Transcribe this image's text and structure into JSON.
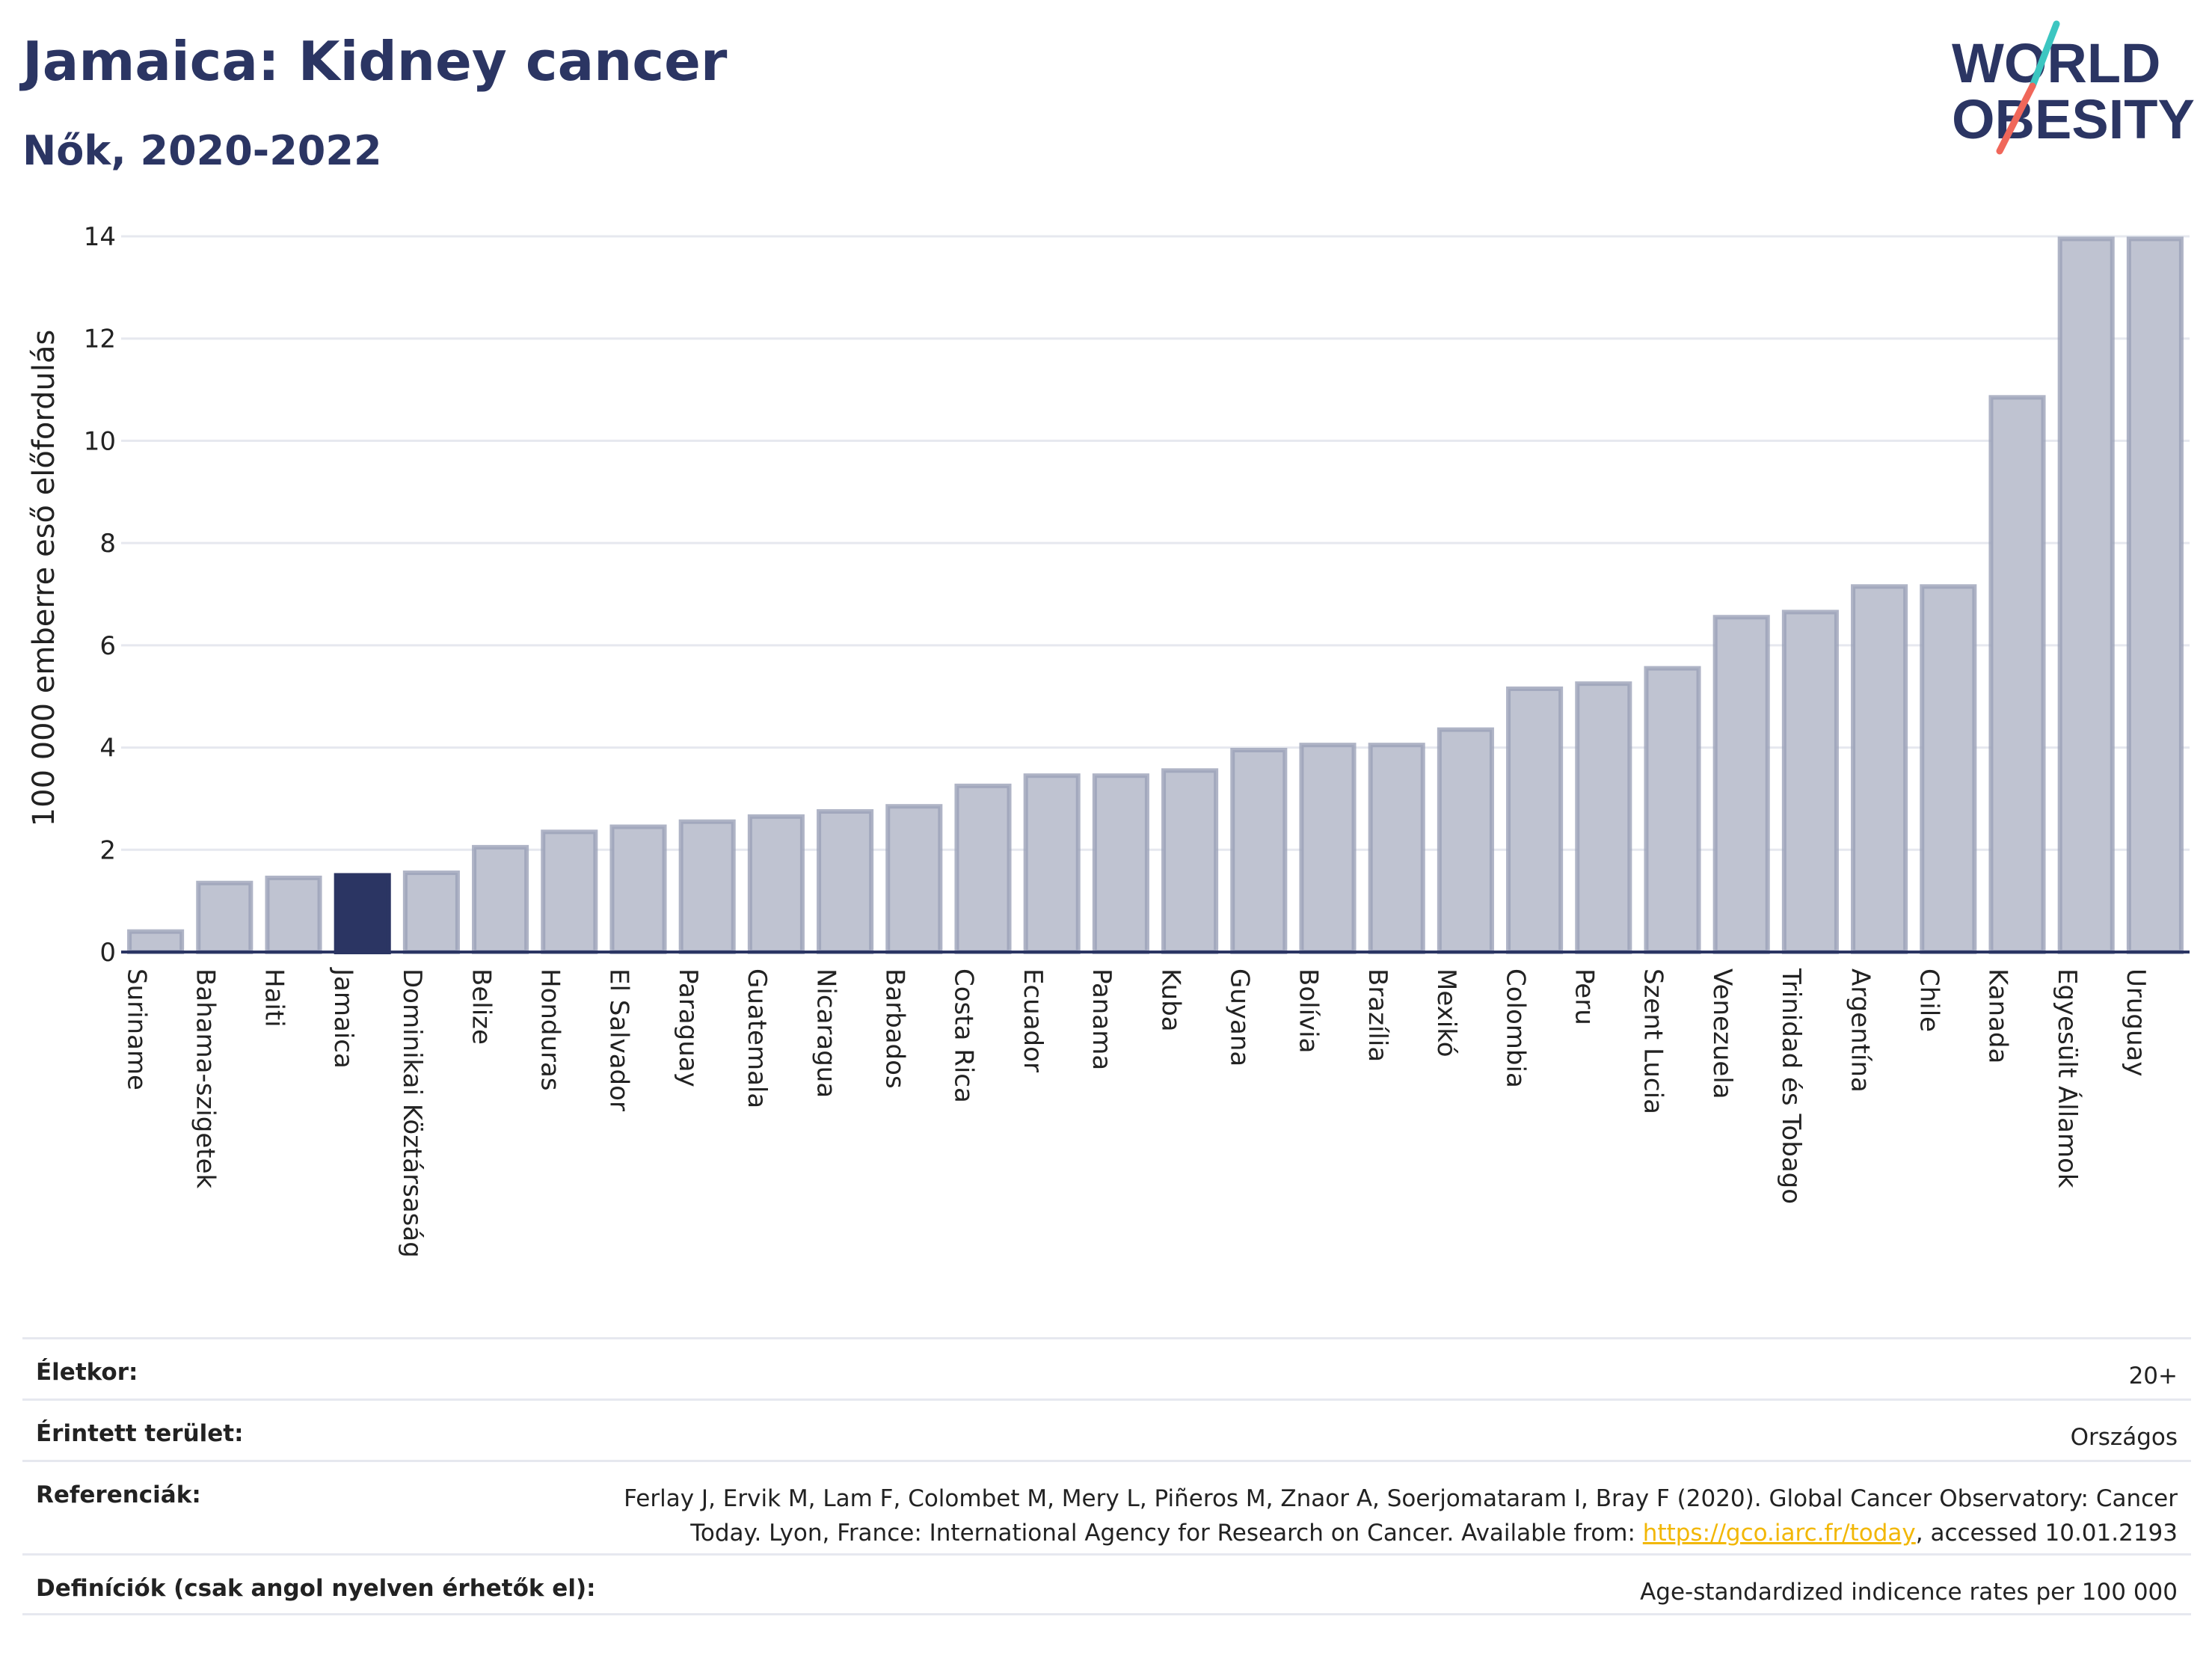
{
  "header": {
    "title": "Jamaica: Kidney cancer",
    "subtitle": "Nők, 2020-2022"
  },
  "logo": {
    "line1": "WORLD",
    "line2": "OBESITY",
    "colors": {
      "text": "#2b3563",
      "slash_top": "#3cc6c1",
      "slash_bottom": "#f0675a"
    }
  },
  "chart_data": {
    "type": "bar",
    "ylabel": "100 000 emberre eső előfordulás",
    "ylim": [
      0,
      14
    ],
    "yticks": [
      0,
      2,
      4,
      6,
      8,
      10,
      12,
      14
    ],
    "grid": true,
    "highlight": "Jamaica",
    "colors": {
      "bar": "#bfc3d1",
      "bar_border": "#9ba1b8",
      "highlight": "#2b3563",
      "grid": "#e6e8ef",
      "axis": "#2b3563"
    },
    "categories": [
      "Suriname",
      "Bahama-szigetek",
      "Haiti",
      "Jamaica",
      "Dominikai Köztársaság",
      "Belize",
      "Honduras",
      "El Salvador",
      "Paraguay",
      "Guatemala",
      "Nicaragua",
      "Barbados",
      "Costa Rica",
      "Ecuador",
      "Panama",
      "Kuba",
      "Guyana",
      "Bolívia",
      "Brazília",
      "Mexikó",
      "Colombia",
      "Peru",
      "Szent Lucia",
      "Venezuela",
      "Trinidad és Tobago",
      "Argentína",
      "Chile",
      "Kanada",
      "Egyesült Államok",
      "Uruguay"
    ],
    "values": [
      0.4,
      1.35,
      1.45,
      1.5,
      1.55,
      2.05,
      2.35,
      2.45,
      2.55,
      2.65,
      2.75,
      2.85,
      3.25,
      3.45,
      3.45,
      3.55,
      3.95,
      4.05,
      4.05,
      4.35,
      5.15,
      5.25,
      5.55,
      6.55,
      6.65,
      7.15,
      7.15,
      10.85,
      13.95,
      13.95
    ]
  },
  "info": {
    "age_label": "Életkor:",
    "age_value": "20+",
    "area_label": "Érintett terület:",
    "area_value": "Országos",
    "ref_label": "Referenciák:",
    "ref_line1": "Ferlay J, Ervik M, Lam F, Colombet M, Mery L, Piñeros M, Znaor A, Soerjomataram I, Bray F (2020). Global Cancer Observatory: Cancer",
    "ref_line2_pre": "Today. Lyon, France: International Agency for Research on Cancer. Available from: ",
    "ref_link": "https://gco.iarc.fr/today",
    "ref_line2_post": ", accessed 10.01.2193",
    "def_label": "Definíciók (csak angol nyelven érhetők el):",
    "def_value": "Age-standardized indicence rates per 100 000"
  }
}
